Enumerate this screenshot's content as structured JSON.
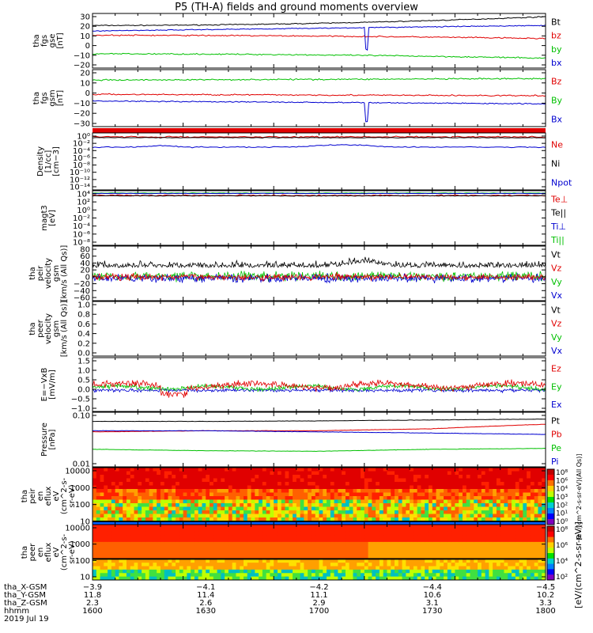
{
  "title": "P5 (TH-A) fields and ground moments overview",
  "colors": {
    "black": "#000000",
    "red": "#e00000",
    "green": "#00c000",
    "blue": "#0000d0"
  },
  "panels": [
    {
      "id": "fgs-gse",
      "ylabel": [
        "tha",
        "fgs",
        "gse",
        "[nT]"
      ],
      "ticks": [
        "30",
        "20",
        "10",
        "0",
        "−10",
        "−20"
      ],
      "legend": [
        {
          "label": "Bt",
          "color": "#000000"
        },
        {
          "label": "bz",
          "color": "#e00000"
        },
        {
          "label": "by",
          "color": "#00c000"
        },
        {
          "label": "bx",
          "color": "#0000d0"
        }
      ]
    },
    {
      "id": "fgs-gsm",
      "ylabel": [
        "tha",
        "fgs",
        "gsm",
        "[nT]"
      ],
      "ticks": [
        "20",
        "10",
        "0",
        "−10",
        "−20",
        "−30"
      ],
      "legend": [
        {
          "label": "Bz",
          "color": "#e00000"
        },
        {
          "label": "By",
          "color": "#00c000"
        },
        {
          "label": "Bx",
          "color": "#0000d0"
        }
      ]
    },
    {
      "id": "density",
      "ylabel": [
        "Density",
        "[1/cc]",
        "[cm−3]"
      ],
      "ticks": [
        "10⁰",
        "10⁻²",
        "10⁻⁴",
        "10⁻⁶",
        "10⁻⁸",
        "10⁻¹⁰",
        "10⁻¹²",
        "10⁻¹⁴"
      ],
      "legend": [
        {
          "label": "Ne",
          "color": "#e00000"
        },
        {
          "label": "Ni",
          "color": "#000000"
        },
        {
          "label": "Npot",
          "color": "#0000d0"
        }
      ]
    },
    {
      "id": "temperature",
      "ylabel": [
        "magt3",
        "[eV]"
      ],
      "ticks": [
        "10⁴",
        "10²",
        "10⁰",
        "10⁻²",
        "10⁻⁴",
        "10⁻⁶",
        "10⁻⁸"
      ],
      "legend": [
        {
          "label": "Te⊥",
          "color": "#e00000"
        },
        {
          "label": "Te||",
          "color": "#000000"
        },
        {
          "label": "Ti⊥",
          "color": "#0000d0"
        },
        {
          "label": "Ti||",
          "color": "#00c000"
        }
      ]
    },
    {
      "id": "peir-velocity",
      "ylabel": [
        "tha",
        "peir",
        "velocity",
        "gsm",
        "[km/s (All Qs)]"
      ],
      "ticks": [
        "80",
        "60",
        "40",
        "20",
        "0",
        "−20",
        "−40",
        "−60"
      ],
      "legend": [
        {
          "label": "Vt",
          "color": "#000000"
        },
        {
          "label": "Vz",
          "color": "#e00000"
        },
        {
          "label": "Vy",
          "color": "#00c000"
        },
        {
          "label": "Vx",
          "color": "#0000d0"
        }
      ]
    },
    {
      "id": "peer-velocity",
      "ylabel": [
        "tha",
        "peer",
        "velocity",
        "gsm",
        "[km/s (All Qs)]"
      ],
      "ticks": [
        "1.0",
        "0.8",
        "0.6",
        "0.4",
        "0.2",
        "0.0"
      ],
      "legend": [
        {
          "label": "Vt",
          "color": "#000000"
        },
        {
          "label": "Vz",
          "color": "#e00000"
        },
        {
          "label": "Vy",
          "color": "#00c000"
        },
        {
          "label": "Vx",
          "color": "#0000d0"
        }
      ]
    },
    {
      "id": "e-field",
      "ylabel": [
        "E=−VxB",
        "[mV/m]"
      ],
      "ticks": [
        "1.5",
        "1.0",
        "0.5",
        "0.0",
        "−0.5",
        "−1.0"
      ],
      "legend": [
        {
          "label": "Ez",
          "color": "#e00000"
        },
        {
          "label": "Ey",
          "color": "#00c000"
        },
        {
          "label": "Ex",
          "color": "#0000d0"
        }
      ]
    },
    {
      "id": "pressure",
      "ylabel": [
        "Pressure",
        "[nPa]"
      ],
      "ticks": [
        "0.10",
        "0.01"
      ],
      "legend": [
        {
          "label": "Pt",
          "color": "#000000"
        },
        {
          "label": "Pb",
          "color": "#e00000"
        },
        {
          "label": "Pe",
          "color": "#00c000"
        },
        {
          "label": "Pi",
          "color": "#0000d0"
        }
      ]
    },
    {
      "id": "peir-spectrogram",
      "ylabel": [
        "tha",
        "peir",
        "en",
        "eflux",
        "eV",
        "(cm^2-s-",
        "sr-eV)"
      ],
      "ticks": [
        "10000",
        "1000",
        "100",
        "10"
      ],
      "legend": []
    },
    {
      "id": "peer-spectrogram",
      "ylabel": [
        "tha",
        "peer",
        "en",
        "eflux",
        "eV",
        "(cm^2-s-",
        "sr-eV)"
      ],
      "ticks": [
        "10000",
        "1000",
        "100",
        "10"
      ],
      "legend": []
    }
  ],
  "colorbars": [
    {
      "id": "ion-colorbar",
      "ticks": [
        "10⁸",
        "10⁶",
        "10⁴",
        "10³",
        "10²",
        "10¹",
        "10⁰"
      ],
      "label": "[eV/(cm^2-s-sr-eV)(All Qs)]"
    },
    {
      "id": "electron-colorbar",
      "ticks": [
        "10⁸",
        "10⁶",
        "10⁴",
        "10²"
      ],
      "label": "[eV/(cm^2-s-sr-eV)]"
    }
  ],
  "xaxis": {
    "rows": [
      {
        "label": "tha_X-GSM",
        "values": [
          "−3.9",
          "−4.1",
          "−4.2",
          "−4.4",
          "−4.5"
        ]
      },
      {
        "label": "tha_Y-GSM",
        "values": [
          "11.8",
          "11.4",
          "11.1",
          "10.6",
          "10.2"
        ]
      },
      {
        "label": "tha_Z-GSM",
        "values": [
          "2.3",
          "2.6",
          "2.9",
          "3.1",
          "3.3"
        ]
      },
      {
        "label": "hhmm",
        "values": [
          "1600",
          "1630",
          "1700",
          "1730",
          "1800"
        ]
      }
    ],
    "date": "2019 Jul 19"
  },
  "chart_data": {
    "type": "line",
    "x": [
      "1600",
      "1630",
      "1700",
      "1730",
      "1800"
    ],
    "panels": [
      {
        "id": "fgs-gse",
        "ylim": [
          -20,
          30
        ],
        "series": [
          {
            "name": "Bt",
            "values": [
              19,
              20,
              21,
              23,
              27
            ]
          },
          {
            "name": "bz",
            "values": [
              10,
              10,
              9.5,
              8.5,
              7
            ]
          },
          {
            "name": "by",
            "values": [
              -7,
              -7.5,
              -7.8,
              -9,
              -11
            ]
          },
          {
            "name": "bx",
            "values": [
              14,
              15,
              15.5,
              17,
              19
            ]
          }
        ]
      },
      {
        "id": "fgs-gsm",
        "ylim": [
          -35,
          25
        ],
        "series": [
          {
            "name": "Bz",
            "values": [
              -1,
              -1,
              -1.5,
              -2,
              -2.5
            ]
          },
          {
            "name": "By",
            "values": [
              14,
              14.5,
              15,
              15,
              15.5
            ]
          },
          {
            "name": "Bx",
            "values": [
              -8,
              -8.5,
              -9,
              -10,
              -11
            ]
          }
        ]
      },
      {
        "id": "pressure",
        "yscale": "log",
        "series": [
          {
            "name": "Pt",
            "values": [
              0.25,
              0.25,
              0.26,
              0.28,
              0.3
            ]
          },
          {
            "name": "Pb",
            "values": [
              0.11,
              0.12,
              0.12,
              0.14,
              0.2
            ]
          },
          {
            "name": "Pe",
            "values": [
              0.028,
              0.025,
              0.024,
              0.028,
              0.03
            ]
          },
          {
            "name": "Pi",
            "values": [
              0.12,
              0.12,
              0.11,
              0.1,
              0.09
            ]
          }
        ]
      }
    ]
  }
}
